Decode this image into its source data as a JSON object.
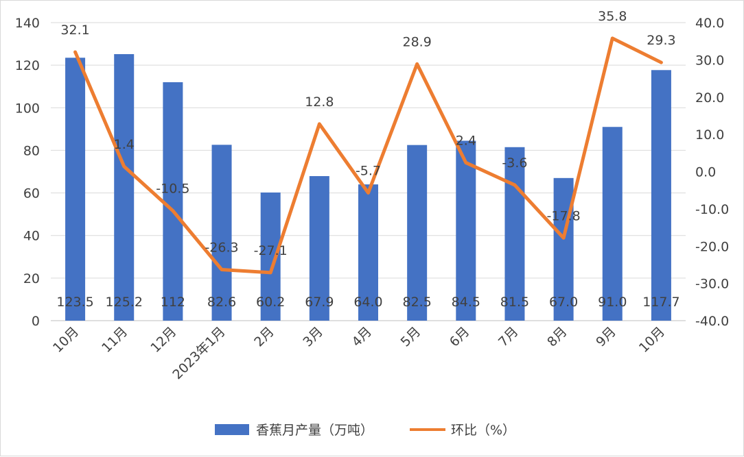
{
  "chart_data": {
    "type": "bar",
    "categories": [
      "10月",
      "11月",
      "12月",
      "2023年1月",
      "2月",
      "3月",
      "4月",
      "5月",
      "6月",
      "7月",
      "8月",
      "9月",
      "10月"
    ],
    "series": [
      {
        "name": "香蕉月产量（万吨）",
        "type": "bar",
        "axis": "left",
        "color": "#4472c4",
        "values": [
          123.5,
          125.2,
          112,
          82.6,
          60.2,
          67.9,
          64.0,
          82.5,
          84.5,
          81.5,
          67.0,
          91.0,
          117.7
        ],
        "labels": [
          "123.5",
          "125.2",
          "112",
          "82.6",
          "60.2",
          "67.9",
          "64.0",
          "82.5",
          "84.5",
          "81.5",
          "67.0",
          "91.0",
          "117.7"
        ]
      },
      {
        "name": "环比（%）",
        "type": "line",
        "axis": "right",
        "color": "#ed7d31",
        "values": [
          32.1,
          1.4,
          -10.5,
          -26.3,
          -27.1,
          12.8,
          -5.7,
          28.9,
          2.4,
          -3.6,
          -17.8,
          35.8,
          29.3
        ],
        "labels": [
          "32.1",
          "1.4",
          "-10.5",
          "-26.3",
          "-27.1",
          "12.8",
          "-5.7",
          "28.9",
          "2.4",
          "-3.6",
          "-17.8",
          "35.8",
          "29.3"
        ]
      }
    ],
    "y_left": {
      "min": 0,
      "max": 140,
      "step": 20,
      "ticks": [
        "0",
        "20",
        "40",
        "60",
        "80",
        "100",
        "120",
        "140"
      ]
    },
    "y_right": {
      "min": -40,
      "max": 40,
      "step": 10,
      "ticks": [
        "-40.0",
        "-30.0",
        "-20.0",
        "-10.0",
        "0.0",
        "10.0",
        "20.0",
        "30.0",
        "40.0"
      ]
    },
    "grid": true,
    "legend_position": "bottom"
  }
}
